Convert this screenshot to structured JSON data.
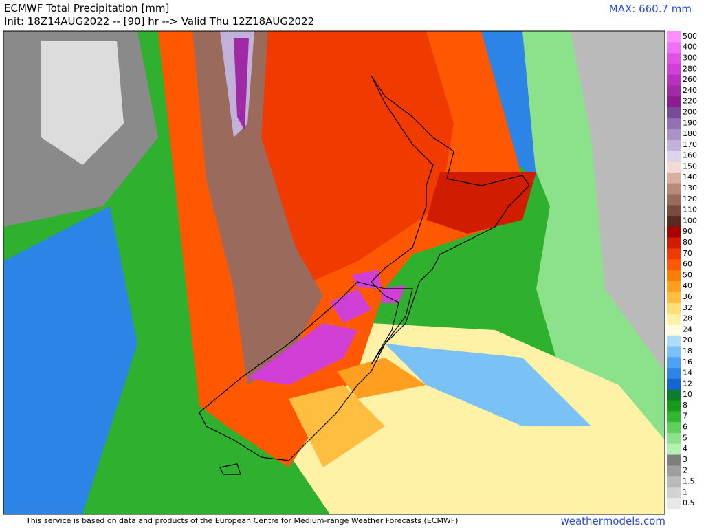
{
  "header": {
    "title": "ECMWF Total Precipitation [mm]",
    "subtitle": "Init: 18Z14AUG2022 -- [90] hr --> Valid Thu 12Z18AUG2022",
    "max": "MAX: 660.7 mm"
  },
  "footer": {
    "credit": "This service is based on data and products of the European Centre for Medium-range Weather Forecasts (ECMWF)",
    "site": "weathermodels.com"
  },
  "colorbar": [
    {
      "value": 0.5,
      "color": "#e8e8e8"
    },
    {
      "value": 1,
      "color": "#d2d2d2"
    },
    {
      "value": 1.5,
      "color": "#bababa"
    },
    {
      "value": 2,
      "color": "#9e9e9e"
    },
    {
      "value": 3,
      "color": "#7e7e7e"
    },
    {
      "value": 4,
      "color": "#b6f0b0"
    },
    {
      "value": 5,
      "color": "#8ce28a"
    },
    {
      "value": 6,
      "color": "#5cd05a"
    },
    {
      "value": 7,
      "color": "#30b830"
    },
    {
      "value": 8,
      "color": "#169a18"
    },
    {
      "value": 10,
      "color": "#0a7e2c"
    },
    {
      "value": 12,
      "color": "#1664d2"
    },
    {
      "value": 14,
      "color": "#2c84e6"
    },
    {
      "value": 16,
      "color": "#4ca2f0"
    },
    {
      "value": 18,
      "color": "#7ac2f6"
    },
    {
      "value": 20,
      "color": "#acdcf8"
    },
    {
      "value": 24,
      "color": "#fffbe0"
    },
    {
      "value": 28,
      "color": "#fff2a6"
    },
    {
      "value": 32,
      "color": "#ffde78"
    },
    {
      "value": 36,
      "color": "#ffbe40"
    },
    {
      "value": 40,
      "color": "#ff9f20"
    },
    {
      "value": 50,
      "color": "#ff7e00"
    },
    {
      "value": 60,
      "color": "#ff5800"
    },
    {
      "value": 70,
      "color": "#f03a00"
    },
    {
      "value": 80,
      "color": "#d01c00"
    },
    {
      "value": 90,
      "color": "#a80000"
    },
    {
      "value": 100,
      "color": "#5a2a20"
    },
    {
      "value": 110,
      "color": "#7a4a3e"
    },
    {
      "value": 120,
      "color": "#9a6a5c"
    },
    {
      "value": 130,
      "color": "#b88a7c"
    },
    {
      "value": 140,
      "color": "#d8b0a2"
    },
    {
      "value": 150,
      "color": "#f2dcd2"
    },
    {
      "value": 160,
      "color": "#dcd2ea"
    },
    {
      "value": 170,
      "color": "#c2b2da"
    },
    {
      "value": 180,
      "color": "#a892c8"
    },
    {
      "value": 190,
      "color": "#9072b0"
    },
    {
      "value": 200,
      "color": "#784a98"
    },
    {
      "value": 220,
      "color": "#8a1e8e"
    },
    {
      "value": 240,
      "color": "#a02aa6"
    },
    {
      "value": 260,
      "color": "#b830be"
    },
    {
      "value": 280,
      "color": "#d040d6"
    },
    {
      "value": 300,
      "color": "#e052e6"
    },
    {
      "value": 400,
      "color": "#f070f6"
    },
    {
      "value": 500,
      "color": "#ff8eff"
    }
  ]
}
